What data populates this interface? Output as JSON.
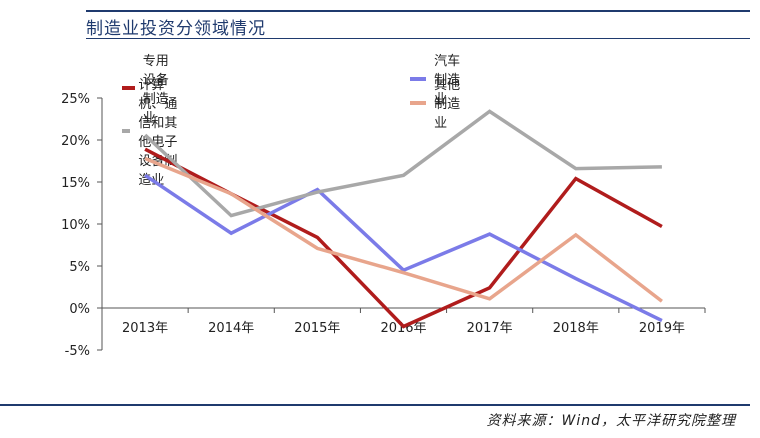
{
  "header": {
    "title": "制造业投资分领域情况"
  },
  "source": "资料来源：Wind，太平洋研究院整理",
  "chart_data": {
    "type": "line",
    "title": "制造业投资分领域情况",
    "xlabel": "",
    "ylabel": "",
    "categories": [
      "2013年",
      "2014年",
      "2015年",
      "2016年",
      "2017年",
      "2018年",
      "2019年"
    ],
    "ylim": [
      -5,
      25
    ],
    "yticks": [
      "-5%",
      "0%",
      "5%",
      "10%",
      "15%",
      "20%",
      "25%"
    ],
    "ytick_values": [
      -5,
      0,
      5,
      10,
      15,
      20,
      25
    ],
    "legend_position": "top",
    "grid": false,
    "series": [
      {
        "name": "专用设备制造业",
        "color": "#b01c1c",
        "values": [
          18.9,
          13.6,
          8.4,
          -2.2,
          2.4,
          15.4,
          9.7
        ]
      },
      {
        "name": "汽车制造业",
        "color": "#7b7be8",
        "values": [
          15.8,
          8.9,
          14.1,
          4.5,
          8.8,
          3.5,
          -1.5
        ]
      },
      {
        "name": "计算机、通信和其他电子设备制造业",
        "color": "#a8a8a8",
        "values": [
          20.6,
          11.0,
          13.8,
          15.8,
          23.4,
          16.6,
          16.8
        ]
      },
      {
        "name": "其他制造业",
        "color": "#e8a58c",
        "values": [
          17.8,
          13.6,
          7.1,
          4.2,
          1.1,
          8.7,
          0.8
        ]
      }
    ]
  }
}
